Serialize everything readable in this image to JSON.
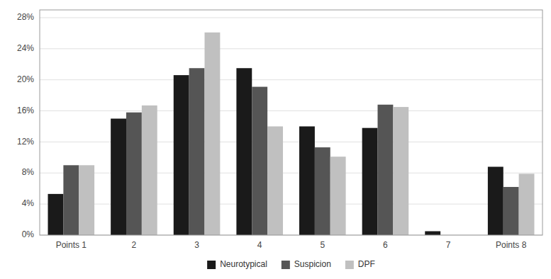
{
  "chart_data": {
    "type": "bar",
    "categories": [
      "Points 1",
      "2",
      "3",
      "4",
      "5",
      "6",
      "7",
      "Points 8"
    ],
    "series": [
      {
        "name": "Neurotypical",
        "color": "#1a1a1a",
        "values": [
          0.053,
          0.15,
          0.206,
          0.215,
          0.14,
          0.138,
          0.005,
          0.088
        ]
      },
      {
        "name": "Suspicion",
        "color": "#555555",
        "values": [
          0.09,
          0.158,
          0.215,
          0.191,
          0.113,
          0.168,
          0.0,
          0.062
        ]
      },
      {
        "name": "DPF",
        "color": "#c0c0c0",
        "values": [
          0.09,
          0.167,
          0.261,
          0.14,
          0.101,
          0.165,
          0.0,
          0.079
        ]
      }
    ],
    "ylim": [
      0,
      0.29
    ],
    "yticks": [
      {
        "value": 0,
        "label": "0%"
      },
      {
        "value": 0.04,
        "label": "4%"
      },
      {
        "value": 0.08,
        "label": "8%"
      },
      {
        "value": 0.12,
        "label": "12%"
      },
      {
        "value": 0.16,
        "label": "16%"
      },
      {
        "value": 0.2,
        "label": "20%"
      },
      {
        "value": 0.24,
        "label": "24%"
      },
      {
        "value": 0.28,
        "label": "28%"
      }
    ],
    "grid": true,
    "legend": "bottom"
  }
}
